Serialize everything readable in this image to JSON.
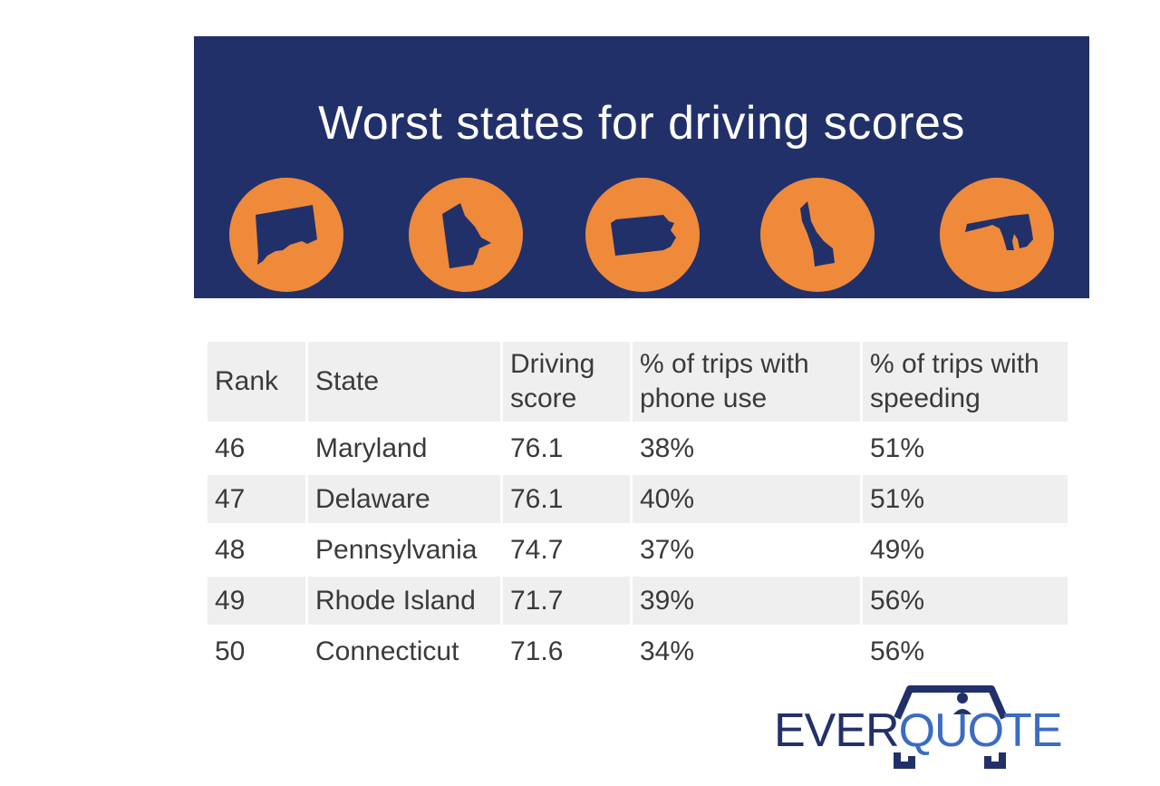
{
  "banner": {
    "title": "Worst states for driving scores",
    "icons": [
      "connecticut-map-icon",
      "rhode-island-map-icon",
      "pennsylvania-map-icon",
      "delaware-map-icon",
      "maryland-map-icon"
    ],
    "background_color": "#22306a",
    "circle_color": "#ee8a3a"
  },
  "chart_data": {
    "type": "table",
    "columns": [
      {
        "line1": "Rank",
        "line2": ""
      },
      {
        "line1": "State",
        "line2": ""
      },
      {
        "line1": "Driving",
        "line2": "score"
      },
      {
        "line1": "% of trips with",
        "line2": "phone use"
      },
      {
        "line1": "% of trips with",
        "line2": "speeding"
      }
    ],
    "rows": [
      [
        "46",
        "Maryland",
        "76.1",
        "38%",
        "51%"
      ],
      [
        "47",
        "Delaware",
        "76.1",
        "40%",
        "51%"
      ],
      [
        "48",
        "Pennsylvania",
        "74.7",
        "37%",
        "49%"
      ],
      [
        "49",
        "Rhode Island",
        "71.7",
        "39%",
        "56%"
      ],
      [
        "50",
        "Connecticut",
        "71.6",
        "34%",
        "56%"
      ]
    ]
  },
  "logo": {
    "part1": "EVER",
    "part2": "QUOTE",
    "colors": {
      "primary": "#22306a",
      "accent": "#3b6cc2"
    }
  }
}
